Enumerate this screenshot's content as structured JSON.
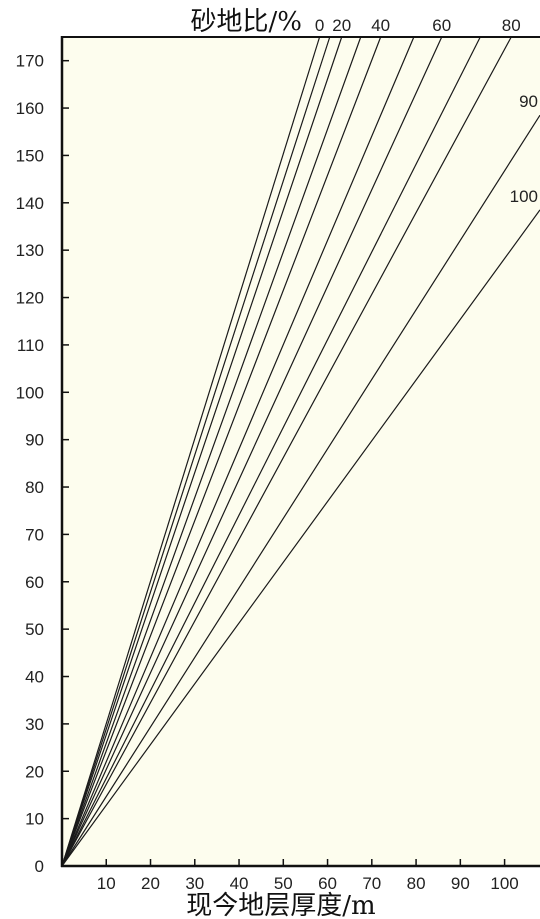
{
  "chart_data": {
    "type": "line",
    "title": "砂地比/%",
    "xlabel": "现今地层厚度/m",
    "ylabel": "",
    "xlim": [
      0,
      108
    ],
    "ylim": [
      0,
      175
    ],
    "x_ticks": [
      10,
      20,
      30,
      40,
      50,
      60,
      70,
      80,
      90,
      100
    ],
    "y_ticks": [
      0,
      10,
      20,
      30,
      40,
      50,
      60,
      70,
      80,
      90,
      100,
      110,
      120,
      130,
      140,
      150,
      160,
      170
    ],
    "grid": false,
    "background_color": "#fdfdee",
    "line_color": "#1a1a1a",
    "series": [
      {
        "label": "0",
        "x": [
          0,
          58.2
        ],
        "y": [
          0,
          175
        ]
      },
      {
        "label": "",
        "x": [
          0,
          60.5
        ],
        "y": [
          0,
          175
        ]
      },
      {
        "label": "20",
        "x": [
          0,
          63.2
        ],
        "y": [
          0,
          175
        ]
      },
      {
        "label": "",
        "x": [
          0,
          67.5
        ],
        "y": [
          0,
          175
        ]
      },
      {
        "label": "40",
        "x": [
          0,
          72.0
        ],
        "y": [
          0,
          175
        ]
      },
      {
        "label": "",
        "x": [
          0,
          79.5
        ],
        "y": [
          0,
          175
        ]
      },
      {
        "label": "60",
        "x": [
          0,
          85.8
        ],
        "y": [
          0,
          175
        ]
      },
      {
        "label": "",
        "x": [
          0,
          94.5
        ],
        "y": [
          0,
          175
        ]
      },
      {
        "label": "80",
        "x": [
          0,
          101.5
        ],
        "y": [
          0,
          175
        ]
      },
      {
        "label": "90",
        "x": [
          0,
          108
        ],
        "y": [
          0,
          158.5
        ]
      },
      {
        "label": "100",
        "x": [
          0,
          108
        ],
        "y": [
          0,
          138.5
        ]
      }
    ]
  }
}
